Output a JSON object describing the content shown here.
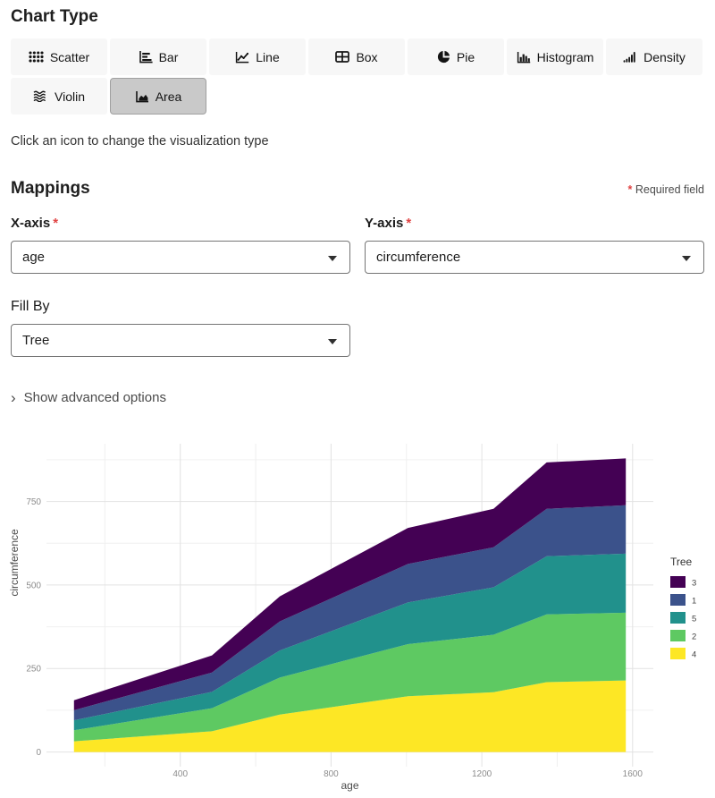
{
  "chart_type": {
    "title": "Chart Type",
    "hint": "Click an icon to change the visualization type",
    "options": [
      {
        "label": "Scatter",
        "icon": "scatter-icon",
        "selected": false
      },
      {
        "label": "Bar",
        "icon": "bar-icon",
        "selected": false
      },
      {
        "label": "Line",
        "icon": "line-icon",
        "selected": false
      },
      {
        "label": "Box",
        "icon": "box-icon",
        "selected": false
      },
      {
        "label": "Pie",
        "icon": "pie-icon",
        "selected": false
      },
      {
        "label": "Histogram",
        "icon": "histogram-icon",
        "selected": false
      },
      {
        "label": "Density",
        "icon": "density-icon",
        "selected": false
      },
      {
        "label": "Violin",
        "icon": "violin-icon",
        "selected": false
      },
      {
        "label": "Area",
        "icon": "area-icon",
        "selected": true
      }
    ]
  },
  "mappings": {
    "title": "Mappings",
    "required_marker": "*",
    "required_note": "Required field",
    "fields": [
      {
        "label": "X-axis",
        "required": true,
        "value": "age"
      },
      {
        "label": "Y-axis",
        "required": true,
        "value": "circumference"
      },
      {
        "label": "Fill By",
        "required": false,
        "value": "Tree"
      }
    ],
    "advanced_chevron": "›",
    "advanced_label": "Show advanced options"
  },
  "chart_data": {
    "type": "area",
    "stacked": true,
    "title": "",
    "xlabel": "age",
    "ylabel": "circumference",
    "x": [
      118,
      484,
      664,
      1004,
      1231,
      1372,
      1582
    ],
    "series": [
      {
        "name": "3",
        "color": "#440154",
        "values": [
          30,
          51,
          75,
          108,
          115,
          139,
          140
        ]
      },
      {
        "name": "1",
        "color": "#3b528b",
        "values": [
          30,
          58,
          87,
          115,
          120,
          142,
          145
        ]
      },
      {
        "name": "5",
        "color": "#21918c",
        "values": [
          30,
          49,
          81,
          125,
          142,
          174,
          177
        ]
      },
      {
        "name": "2",
        "color": "#5ec962",
        "values": [
          33,
          69,
          111,
          156,
          172,
          203,
          203
        ]
      },
      {
        "name": "4",
        "color": "#fde725",
        "values": [
          32,
          62,
          112,
          167,
          179,
          209,
          214
        ]
      }
    ],
    "stack_order": [
      "4",
      "2",
      "5",
      "1",
      "3"
    ],
    "legend": {
      "title": "Tree",
      "position": "right",
      "entries": [
        "3",
        "1",
        "5",
        "2",
        "4"
      ]
    },
    "axes": {
      "xticks": [
        400,
        800,
        1200,
        1600
      ],
      "xticks_minor": [
        200,
        600,
        1000,
        1400
      ],
      "yticks": [
        0,
        250,
        500,
        750
      ],
      "yticks_minor": [
        125,
        375,
        625,
        875
      ],
      "xlim": [
        45,
        1655
      ],
      "ylim": [
        -44,
        923
      ],
      "grid": true
    },
    "style": {
      "grid_major_color": "#e2e2e2",
      "grid_minor_color": "#f0f0f0",
      "tick_label_color": "#8c8c8c",
      "axis_title_color": "#4a4a4a"
    }
  }
}
